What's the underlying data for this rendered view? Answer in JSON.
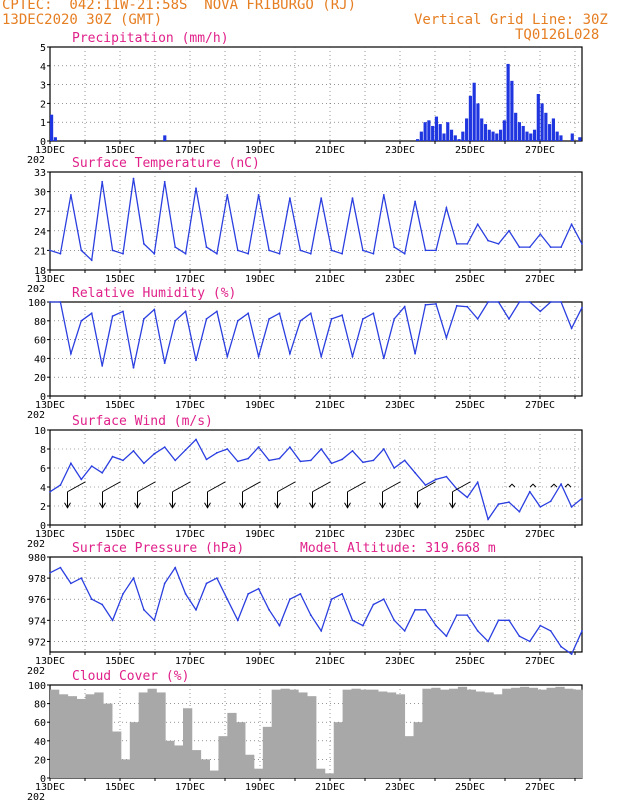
{
  "header": {
    "line1": "CPTEC:  042:11W-21:58S  NOVA FRIBURGO (RJ)",
    "line2": "13DEC2020 30Z (GMT)",
    "grid_note": "Vertical Grid Line: 30Z",
    "code": "TQ0126L028"
  },
  "colors": {
    "header": "#e67e22",
    "title": "#e0218a",
    "line": "#2b3fe0",
    "bar": "#1f35e0",
    "cloud": "#a8a8a8"
  },
  "chart_data": [
    {
      "type": "bar",
      "title": "Precipitation (mm/h)",
      "x_labels": [
        "13DEC",
        "15DEC",
        "17DEC",
        "19DEC",
        "21DEC",
        "23DEC",
        "25DEC",
        "27DEC"
      ],
      "ylim": [
        0,
        5
      ],
      "yticks": [
        "0",
        "1",
        "2",
        "3",
        "4",
        "5"
      ],
      "values": [
        1.4,
        0.2,
        0,
        0,
        0,
        0,
        0,
        0,
        0,
        0,
        0,
        0,
        0,
        0,
        0,
        0,
        0,
        0,
        0,
        0,
        0,
        0,
        0,
        0,
        0,
        0,
        0,
        0,
        0,
        0,
        0.3,
        0,
        0,
        0,
        0,
        0,
        0,
        0,
        0,
        0,
        0,
        0,
        0,
        0,
        0,
        0,
        0,
        0,
        0,
        0,
        0,
        0,
        0,
        0,
        0,
        0,
        0,
        0,
        0,
        0,
        0,
        0,
        0,
        0,
        0,
        0,
        0,
        0,
        0,
        0,
        0,
        0,
        0,
        0,
        0,
        0,
        0,
        0,
        0,
        0,
        0,
        0,
        0,
        0,
        0,
        0,
        0,
        0,
        0,
        0,
        0,
        0,
        0,
        0,
        0,
        0,
        0,
        0.1,
        0.5,
        1.0,
        1.1,
        0.8,
        1.3,
        0.9,
        0.4,
        1.0,
        0.6,
        0.3,
        0.1,
        0.5,
        1.2,
        2.4,
        3.1,
        2.0,
        1.2,
        0.9,
        0.6,
        0.5,
        0.4,
        0.6,
        1.1,
        4.1,
        3.2,
        1.5,
        1.0,
        0.8,
        0.5,
        0.4,
        0.6,
        2.5,
        2.0,
        1.5,
        0.9,
        1.2,
        0.5,
        0.3,
        0,
        0,
        0.4,
        0,
        0.2
      ]
    },
    {
      "type": "line",
      "title": "Surface Temperature (nC)",
      "x_labels": [
        "13DEC",
        "15DEC",
        "17DEC",
        "19DEC",
        "21DEC",
        "23DEC",
        "25DEC",
        "27DEC"
      ],
      "ylim": [
        18,
        33
      ],
      "yticks": [
        "18",
        "21",
        "24",
        "27",
        "30",
        "33"
      ],
      "values": [
        21,
        20.5,
        29.5,
        21,
        19.5,
        31.5,
        21,
        20.5,
        32,
        22,
        20.5,
        31.5,
        21.5,
        20.5,
        30.5,
        21.5,
        20.5,
        29.5,
        21,
        20.5,
        29.5,
        21,
        20.5,
        29,
        21,
        20.5,
        29,
        21,
        20.5,
        29,
        21,
        20.5,
        29.5,
        21.5,
        20.5,
        28.5,
        21,
        21,
        27.5,
        22,
        22,
        25,
        22.5,
        22,
        24,
        21.5,
        21.5,
        23.5,
        21.5,
        21.5,
        25,
        22
      ]
    },
    {
      "type": "line",
      "title": "Relative Humidity (%)",
      "x_labels": [
        "13DEC",
        "15DEC",
        "17DEC",
        "19DEC",
        "21DEC",
        "23DEC",
        "25DEC",
        "27DEC"
      ],
      "ylim": [
        0,
        100
      ],
      "yticks": [
        "0",
        "20",
        "40",
        "60",
        "80",
        "100"
      ],
      "values": [
        100,
        100,
        45,
        80,
        88,
        32,
        85,
        90,
        30,
        82,
        92,
        35,
        80,
        90,
        38,
        82,
        90,
        42,
        80,
        88,
        42,
        82,
        88,
        45,
        80,
        88,
        42,
        82,
        86,
        42,
        82,
        88,
        40,
        82,
        95,
        45,
        97,
        98,
        62,
        96,
        95,
        82,
        100,
        100,
        82,
        100,
        100,
        90,
        100,
        100,
        72,
        94
      ]
    },
    {
      "type": "line",
      "title": "Surface Wind (m/s)",
      "x_labels": [
        "13DEC",
        "15DEC",
        "17DEC",
        "19DEC",
        "21DEC",
        "23DEC",
        "25DEC",
        "27DEC"
      ],
      "ylim": [
        0,
        10
      ],
      "yticks": [
        "0",
        "2",
        "4",
        "6",
        "8",
        "10"
      ],
      "values": [
        3.5,
        4.2,
        6.5,
        4.8,
        6.2,
        5.5,
        7.2,
        6.8,
        7.8,
        6.5,
        7.5,
        8.2,
        6.8,
        7.9,
        9,
        6.9,
        7.6,
        8,
        6.7,
        7,
        8.2,
        6.8,
        7,
        8.2,
        6.7,
        6.8,
        8,
        6.5,
        6.9,
        7.8,
        6.6,
        6.8,
        8,
        6,
        6.8,
        5.5,
        4.2,
        4.8,
        5.1,
        3.8,
        2.9,
        4.5,
        0.6,
        2.2,
        2.4,
        1.4,
        3.5,
        1.9,
        2.5,
        4.3,
        1.9,
        2.8
      ]
    },
    {
      "type": "line",
      "title": "Surface Pressure (hPa)",
      "subtitle": "Model Altitude: 319.668 m",
      "x_labels": [
        "13DEC",
        "15DEC",
        "17DEC",
        "19DEC",
        "21DEC",
        "23DEC",
        "25DEC",
        "27DEC"
      ],
      "ylim": [
        971,
        980
      ],
      "yticks": [
        "972",
        "974",
        "976",
        "978",
        "980"
      ],
      "values": [
        978.5,
        979,
        977.5,
        978,
        976,
        975.5,
        974,
        976.5,
        978,
        975,
        974,
        977.5,
        979,
        976.5,
        975,
        977.5,
        978,
        976,
        974,
        976.5,
        977,
        975,
        973.5,
        976,
        976.5,
        974.5,
        973,
        976,
        976.5,
        974,
        973.5,
        975.5,
        976,
        974,
        973,
        975,
        975,
        973.5,
        972.5,
        974.5,
        974.5,
        973,
        972,
        974,
        974,
        972.5,
        972,
        973.5,
        973,
        971.5,
        970.8,
        973
      ]
    },
    {
      "type": "area",
      "title": "Cloud Cover (%)",
      "x_labels": [
        "13DEC",
        "15DEC",
        "17DEC",
        "19DEC",
        "21DEC",
        "23DEC",
        "25DEC",
        "27DEC"
      ],
      "ylim": [
        0,
        100
      ],
      "yticks": [
        "0",
        "20",
        "40",
        "60",
        "80",
        "100"
      ],
      "values": [
        95,
        90,
        88,
        85,
        90,
        92,
        80,
        50,
        20,
        60,
        92,
        96,
        92,
        40,
        35,
        75,
        30,
        20,
        8,
        45,
        70,
        60,
        25,
        10,
        55,
        95,
        96,
        95,
        92,
        88,
        10,
        5,
        60,
        95,
        96,
        95,
        95,
        93,
        92,
        90,
        45,
        60,
        96,
        97,
        95,
        96,
        98,
        95,
        93,
        92,
        90,
        96,
        97,
        98,
        97,
        95,
        97,
        98,
        96,
        95
      ]
    }
  ],
  "panel_titles": {
    "precip": "Precipitation (mm/h)",
    "temp": "Surface Temperature (nC)",
    "rh": "Relative Humidity (%)",
    "wind": "Surface Wind (m/s)",
    "press": "Surface Pressure (hPa)",
    "altitude": "Model Altitude: 319.668 m",
    "cloud": "Cloud Cover (%)"
  },
  "cut_label": "202"
}
